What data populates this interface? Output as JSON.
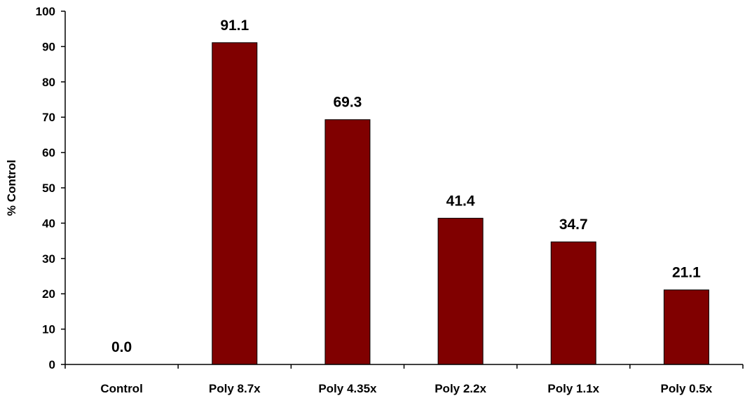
{
  "chart_data": {
    "type": "bar",
    "title": "",
    "xlabel": "",
    "ylabel": "% Control",
    "ylim": [
      0,
      100
    ],
    "yticks": [
      0,
      10,
      20,
      30,
      40,
      50,
      60,
      70,
      80,
      90,
      100
    ],
    "categories": [
      "Control",
      "Poly 8.7x",
      "Poly 4.35x",
      "Poly 2.2x",
      "Poly 1.1x",
      "Poly 0.5x"
    ],
    "values": [
      0.0,
      91.1,
      69.3,
      41.4,
      34.7,
      21.1
    ],
    "data_labels": [
      "0.0",
      "91.1",
      "69.3",
      "41.4",
      "34.7",
      "21.1"
    ],
    "bar_color": "#800000",
    "grid": false,
    "legend": "none"
  }
}
